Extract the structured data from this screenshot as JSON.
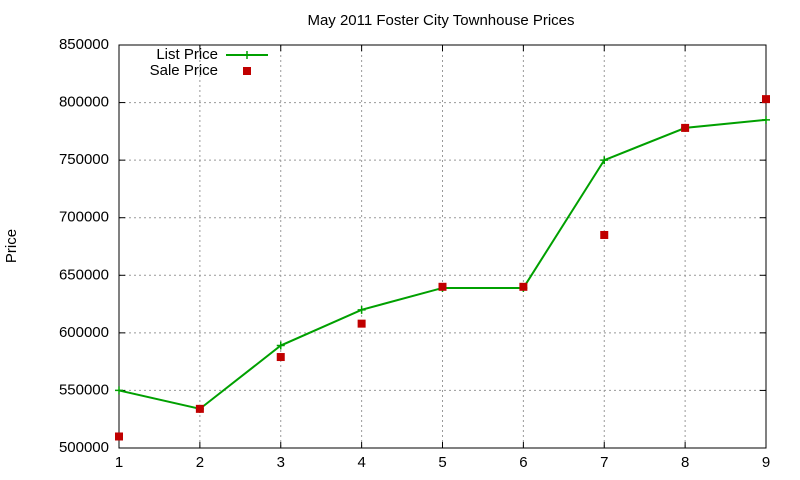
{
  "chart_data": {
    "type": "line",
    "title": "May 2011 Foster City Townhouse Prices",
    "y_label": "Price",
    "x": [
      1,
      2,
      3,
      4,
      5,
      6,
      7,
      8,
      9
    ],
    "xlim": [
      1,
      9
    ],
    "xticks": [
      1,
      2,
      3,
      4,
      5,
      6,
      7,
      8,
      9
    ],
    "ylim": [
      500000,
      850000
    ],
    "yticks": [
      500000,
      550000,
      600000,
      650000,
      700000,
      750000,
      800000,
      850000
    ],
    "grid": true,
    "legend": "top-left",
    "series": [
      {
        "name": "List Price",
        "color": "#00a000",
        "style": "linespoints",
        "values": [
          550000,
          534000,
          589000,
          620000,
          639000,
          639000,
          750000,
          778000,
          785000
        ]
      },
      {
        "name": "Sale Price",
        "color": "#c00000",
        "style": "points",
        "values": [
          510000,
          534000,
          579000,
          608000,
          640000,
          640000,
          685000,
          778000,
          803000
        ]
      }
    ]
  }
}
